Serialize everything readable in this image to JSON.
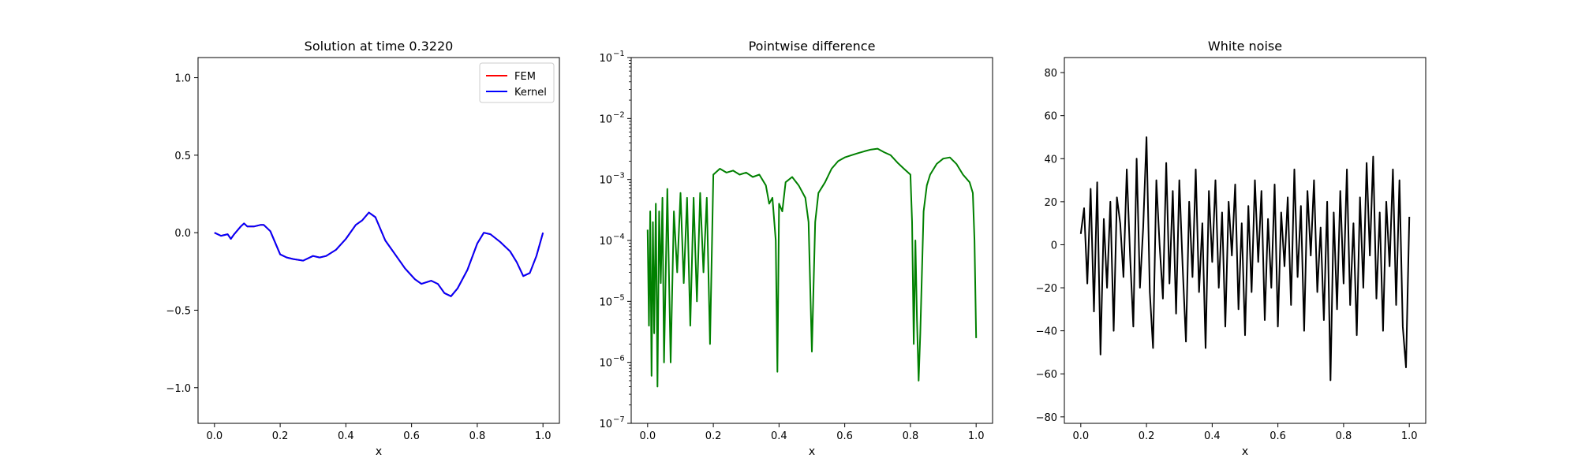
{
  "figure": {
    "background": "#ffffff"
  },
  "chart_data": [
    {
      "type": "line",
      "title": "Solution at time 0.3220",
      "xlabel": "x",
      "ylabel": "",
      "xlim": [
        -0.05,
        1.05
      ],
      "ylim": [
        -1.23,
        1.13
      ],
      "xticks": [
        0.0,
        0.2,
        0.4,
        0.6,
        0.8,
        1.0
      ],
      "xtick_labels": [
        "0.0",
        "0.2",
        "0.4",
        "0.6",
        "0.8",
        "1.0"
      ],
      "yticks": [
        -1.0,
        -0.5,
        0.0,
        0.5,
        1.0
      ],
      "ytick_labels": [
        "−1.0",
        "−0.5",
        "0.0",
        "0.5",
        "1.0"
      ],
      "legend": {
        "placement": "upper right",
        "entries": [
          "FEM",
          "Kernel"
        ]
      },
      "series": [
        {
          "name": "FEM",
          "color": "#ff0000",
          "x": [
            0.0,
            0.02,
            0.04,
            0.05,
            0.06,
            0.08,
            0.09,
            0.1,
            0.12,
            0.14,
            0.15,
            0.17,
            0.2,
            0.22,
            0.24,
            0.27,
            0.3,
            0.32,
            0.34,
            0.37,
            0.4,
            0.43,
            0.45,
            0.47,
            0.49,
            0.52,
            0.55,
            0.58,
            0.61,
            0.63,
            0.66,
            0.68,
            0.7,
            0.72,
            0.74,
            0.77,
            0.8,
            0.82,
            0.84,
            0.87,
            0.9,
            0.92,
            0.94,
            0.96,
            0.98,
            1.0
          ],
          "y": [
            0.0,
            -0.02,
            -0.01,
            -0.04,
            -0.01,
            0.04,
            0.06,
            0.04,
            0.04,
            0.05,
            0.05,
            0.01,
            -0.14,
            -0.16,
            -0.17,
            -0.18,
            -0.15,
            -0.16,
            -0.15,
            -0.11,
            -0.04,
            0.05,
            0.08,
            0.13,
            0.1,
            -0.05,
            -0.14,
            -0.23,
            -0.3,
            -0.33,
            -0.31,
            -0.33,
            -0.39,
            -0.41,
            -0.36,
            -0.24,
            -0.07,
            0.0,
            -0.01,
            -0.06,
            -0.12,
            -0.19,
            -0.28,
            -0.26,
            -0.15,
            0.0
          ]
        },
        {
          "name": "Kernel",
          "color": "#0000ff",
          "x": [
            0.0,
            0.02,
            0.04,
            0.05,
            0.06,
            0.08,
            0.09,
            0.1,
            0.12,
            0.14,
            0.15,
            0.17,
            0.2,
            0.22,
            0.24,
            0.27,
            0.3,
            0.32,
            0.34,
            0.37,
            0.4,
            0.43,
            0.45,
            0.47,
            0.49,
            0.52,
            0.55,
            0.58,
            0.61,
            0.63,
            0.66,
            0.68,
            0.7,
            0.72,
            0.74,
            0.77,
            0.8,
            0.82,
            0.84,
            0.87,
            0.9,
            0.92,
            0.94,
            0.96,
            0.98,
            1.0
          ],
          "y": [
            0.0,
            -0.02,
            -0.01,
            -0.04,
            -0.01,
            0.04,
            0.06,
            0.04,
            0.04,
            0.05,
            0.05,
            0.01,
            -0.14,
            -0.16,
            -0.17,
            -0.18,
            -0.15,
            -0.16,
            -0.15,
            -0.11,
            -0.04,
            0.05,
            0.08,
            0.13,
            0.1,
            -0.05,
            -0.14,
            -0.23,
            -0.3,
            -0.33,
            -0.31,
            -0.33,
            -0.39,
            -0.41,
            -0.36,
            -0.24,
            -0.07,
            0.0,
            -0.01,
            -0.06,
            -0.12,
            -0.19,
            -0.28,
            -0.26,
            -0.15,
            0.0
          ]
        }
      ]
    },
    {
      "type": "line",
      "title": "Pointwise difference",
      "xlabel": "x",
      "ylabel": "",
      "yscale": "log",
      "xlim": [
        -0.05,
        1.05
      ],
      "ylim": [
        1e-07,
        0.1
      ],
      "xticks": [
        0.0,
        0.2,
        0.4,
        0.6,
        0.8,
        1.0
      ],
      "xtick_labels": [
        "0.0",
        "0.2",
        "0.4",
        "0.6",
        "0.8",
        "1.0"
      ],
      "yticks": [
        1e-07,
        1e-06,
        1e-05,
        0.0001,
        0.001,
        0.01,
        0.1
      ],
      "ytick_labels": [
        "10",
        "10",
        "10",
        "10",
        "10",
        "10",
        "10"
      ],
      "ytick_exponents": [
        "−7",
        "−6",
        "−5",
        "−4",
        "−3",
        "−2",
        "−1"
      ],
      "series": [
        {
          "color": "#008000",
          "x": [
            0.0,
            0.004,
            0.008,
            0.012,
            0.016,
            0.02,
            0.025,
            0.03,
            0.035,
            0.04,
            0.045,
            0.05,
            0.06,
            0.07,
            0.08,
            0.09,
            0.1,
            0.11,
            0.12,
            0.13,
            0.14,
            0.15,
            0.16,
            0.17,
            0.18,
            0.19,
            0.2,
            0.22,
            0.24,
            0.26,
            0.28,
            0.3,
            0.32,
            0.34,
            0.36,
            0.37,
            0.38,
            0.39,
            0.395,
            0.4,
            0.41,
            0.42,
            0.44,
            0.46,
            0.48,
            0.49,
            0.5,
            0.51,
            0.52,
            0.54,
            0.56,
            0.58,
            0.6,
            0.62,
            0.64,
            0.66,
            0.68,
            0.7,
            0.72,
            0.74,
            0.76,
            0.78,
            0.8,
            0.805,
            0.81,
            0.815,
            0.82,
            0.825,
            0.83,
            0.84,
            0.85,
            0.86,
            0.88,
            0.9,
            0.92,
            0.94,
            0.96,
            0.98,
            0.99,
            0.995,
            1.0
          ],
          "y": [
            0.00015,
            4e-06,
            0.0003,
            6e-07,
            0.0002,
            3e-06,
            0.0004,
            4e-07,
            0.0003,
            2e-05,
            0.0005,
            1e-06,
            0.0007,
            1e-06,
            0.0003,
            3e-05,
            0.0006,
            2e-05,
            0.0005,
            4e-06,
            0.0005,
            1e-05,
            0.0006,
            3e-05,
            0.0005,
            2e-06,
            0.0012,
            0.0015,
            0.0013,
            0.0014,
            0.0012,
            0.0013,
            0.0011,
            0.0012,
            0.0008,
            0.0004,
            0.0005,
            0.0001,
            7e-07,
            0.0004,
            0.0003,
            0.0009,
            0.0011,
            0.0008,
            0.0005,
            0.0002,
            1.5e-06,
            0.0002,
            0.0006,
            0.0009,
            0.0015,
            0.002,
            0.0023,
            0.0025,
            0.0027,
            0.0029,
            0.0031,
            0.0032,
            0.0028,
            0.0025,
            0.0019,
            0.0015,
            0.0012,
            0.0002,
            2e-06,
            0.0001,
            5e-06,
            5e-07,
            3e-06,
            0.0003,
            0.0008,
            0.0012,
            0.0018,
            0.0022,
            0.0023,
            0.0018,
            0.0012,
            0.0009,
            0.0006,
            0.0001,
            2.5e-06
          ]
        }
      ]
    },
    {
      "type": "line",
      "title": "White noise",
      "xlabel": "x",
      "ylabel": "",
      "xlim": [
        -0.05,
        1.05
      ],
      "ylim": [
        -83,
        87
      ],
      "xticks": [
        0.0,
        0.2,
        0.4,
        0.6,
        0.8,
        1.0
      ],
      "xtick_labels": [
        "0.0",
        "0.2",
        "0.4",
        "0.6",
        "0.8",
        "1.0"
      ],
      "yticks": [
        -80,
        -60,
        -40,
        -20,
        0,
        20,
        40,
        60,
        80
      ],
      "ytick_labels": [
        "−80",
        "−60",
        "−40",
        "−20",
        "0",
        "20",
        "40",
        "60",
        "80"
      ],
      "series": [
        {
          "color": "#000000",
          "x": [
            0.0,
            0.01,
            0.02,
            0.03,
            0.04,
            0.05,
            0.06,
            0.07,
            0.08,
            0.09,
            0.1,
            0.11,
            0.12,
            0.13,
            0.14,
            0.15,
            0.16,
            0.17,
            0.18,
            0.19,
            0.2,
            0.21,
            0.22,
            0.23,
            0.24,
            0.25,
            0.26,
            0.27,
            0.28,
            0.29,
            0.3,
            0.31,
            0.32,
            0.33,
            0.34,
            0.35,
            0.36,
            0.37,
            0.38,
            0.39,
            0.4,
            0.41,
            0.42,
            0.43,
            0.44,
            0.45,
            0.46,
            0.47,
            0.48,
            0.49,
            0.5,
            0.51,
            0.52,
            0.53,
            0.54,
            0.55,
            0.56,
            0.57,
            0.58,
            0.59,
            0.6,
            0.61,
            0.62,
            0.63,
            0.64,
            0.65,
            0.66,
            0.67,
            0.68,
            0.69,
            0.7,
            0.71,
            0.72,
            0.73,
            0.74,
            0.75,
            0.76,
            0.77,
            0.78,
            0.79,
            0.8,
            0.81,
            0.82,
            0.83,
            0.84,
            0.85,
            0.86,
            0.87,
            0.88,
            0.89,
            0.9,
            0.91,
            0.92,
            0.93,
            0.94,
            0.95,
            0.96,
            0.97,
            0.98,
            0.99,
            1.0
          ],
          "y": [
            5,
            17,
            -18,
            26,
            -31,
            29,
            -51,
            12,
            -20,
            20,
            -40,
            22,
            10,
            -15,
            35,
            -5,
            -38,
            40,
            -20,
            8,
            50,
            -22,
            -48,
            30,
            0,
            -25,
            38,
            -18,
            25,
            -32,
            30,
            -10,
            -45,
            20,
            -15,
            35,
            -22,
            10,
            -48,
            25,
            -8,
            30,
            -20,
            15,
            -38,
            20,
            -5,
            28,
            -30,
            10,
            -42,
            18,
            -22,
            30,
            -8,
            25,
            -35,
            12,
            -20,
            28,
            -38,
            15,
            -10,
            22,
            -28,
            35,
            -15,
            18,
            -40,
            25,
            -5,
            30,
            -22,
            8,
            -35,
            20,
            -63,
            15,
            -30,
            25,
            -18,
            35,
            -28,
            10,
            -42,
            22,
            -20,
            38,
            -5,
            41,
            -25,
            15,
            -40,
            20,
            -10,
            35,
            -28,
            30,
            -38,
            -57,
            13
          ]
        }
      ]
    }
  ]
}
